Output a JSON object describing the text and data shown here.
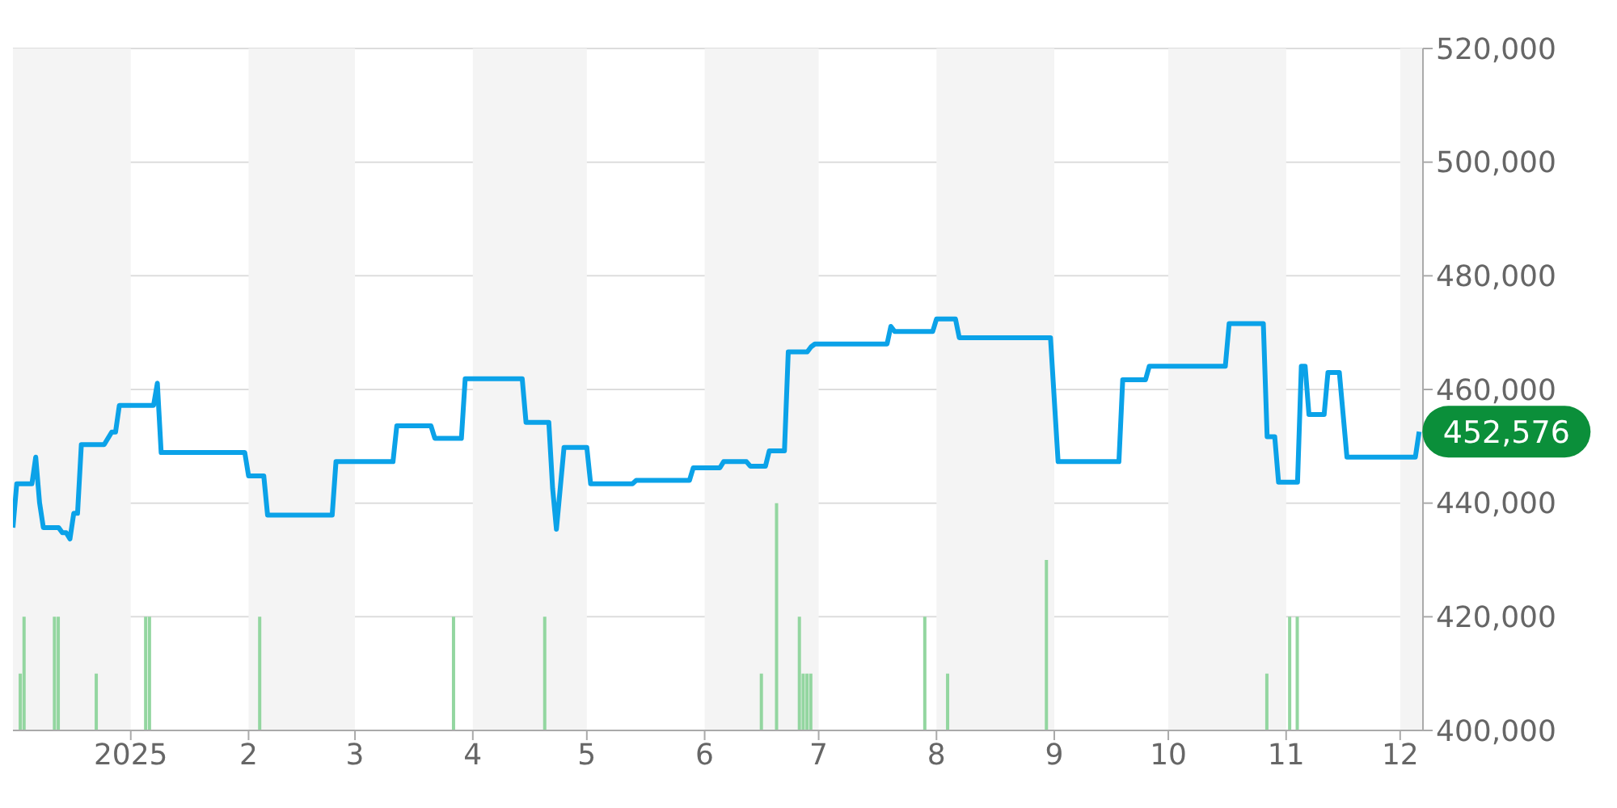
{
  "chart_data": {
    "type": "line",
    "xlim": [
      "2024-12-01",
      "2025-12-07"
    ],
    "xticks": [
      {
        "value": "2025-01-01",
        "label": "2025"
      },
      {
        "value": "2025-02-01",
        "label": "2"
      },
      {
        "value": "2025-03-01",
        "label": "3"
      },
      {
        "value": "2025-04-01",
        "label": "4"
      },
      {
        "value": "2025-05-01",
        "label": "5"
      },
      {
        "value": "2025-06-01",
        "label": "6"
      },
      {
        "value": "2025-07-01",
        "label": "7"
      },
      {
        "value": "2025-08-01",
        "label": "8"
      },
      {
        "value": "2025-09-01",
        "label": "9"
      },
      {
        "value": "2025-10-01",
        "label": "10"
      },
      {
        "value": "2025-11-01",
        "label": "11"
      },
      {
        "value": "2025-12-01",
        "label": "12"
      }
    ],
    "ylim": [
      400000,
      520000
    ],
    "yticks": [
      {
        "value": 400000,
        "label": "400,000"
      },
      {
        "value": 420000,
        "label": "420,000"
      },
      {
        "value": 440000,
        "label": "440,000"
      },
      {
        "value": 460000,
        "label": "460,000"
      },
      {
        "value": 480000,
        "label": "480,000"
      },
      {
        "value": 500000,
        "label": "500,000"
      },
      {
        "value": 520000,
        "label": "520,000"
      }
    ],
    "grid": "y",
    "bands": [
      {
        "axis": "x",
        "from": "2024-12-01",
        "to": "2025-01-01",
        "color": "#f4f4f4"
      },
      {
        "axis": "x",
        "from": "2025-02-01",
        "to": "2025-03-01",
        "color": "#f4f4f4"
      },
      {
        "axis": "x",
        "from": "2025-04-01",
        "to": "2025-05-01",
        "color": "#f4f4f4"
      },
      {
        "axis": "x",
        "from": "2025-06-01",
        "to": "2025-07-01",
        "color": "#f4f4f4"
      },
      {
        "axis": "x",
        "from": "2025-08-01",
        "to": "2025-09-01",
        "color": "#f4f4f4"
      },
      {
        "axis": "x",
        "from": "2025-10-01",
        "to": "2025-11-01",
        "color": "#f4f4f4"
      },
      {
        "axis": "x",
        "from": "2025-12-01",
        "to": "2025-12-07",
        "color": "#f4f4f4"
      }
    ],
    "series": [
      {
        "type": "bar",
        "color": "#93d6a0",
        "x": [
          "2024-12-03",
          "2024-12-04",
          "2024-12-12",
          "2024-12-13",
          "2024-12-23",
          "2025-01-05",
          "2025-01-06",
          "2025-02-04",
          "2025-03-27",
          "2025-04-20",
          "2025-06-16",
          "2025-06-20",
          "2025-06-26",
          "2025-06-27",
          "2025-06-28",
          "2025-06-29",
          "2025-07-29",
          "2025-08-04",
          "2025-08-30",
          "2025-10-27",
          "2025-11-02",
          "2025-11-04"
        ],
        "values": [
          410000,
          420000,
          420000,
          420000,
          410000,
          420000,
          420000,
          420000,
          420000,
          420000,
          410000,
          440000,
          420000,
          410000,
          410000,
          410000,
          420000,
          410000,
          430000,
          410000,
          420000,
          420000
        ]
      },
      {
        "color": "#0ba2e8",
        "x": [
          "2024-12-01",
          "2024-12-02",
          "2024-12-06",
          "2024-12-07",
          "2024-12-08",
          "2024-12-09",
          "2024-12-13",
          "2024-12-14",
          "2024-12-15",
          "2024-12-16",
          "2024-12-17",
          "2024-12-18",
          "2024-12-19",
          "2024-12-25",
          "2024-12-27",
          "2024-12-28",
          "2024-12-29",
          "2025-01-07",
          "2025-01-08",
          "2025-01-09",
          "2025-01-31",
          "2025-02-01",
          "2025-02-05",
          "2025-02-06",
          "2025-02-23",
          "2025-02-24",
          "2025-03-11",
          "2025-03-12",
          "2025-03-21",
          "2025-03-22",
          "2025-03-29",
          "2025-03-30",
          "2025-04-14",
          "2025-04-15",
          "2025-04-21",
          "2025-04-22",
          "2025-04-23",
          "2025-04-25",
          "2025-05-01",
          "2025-05-02",
          "2025-05-13",
          "2025-05-14",
          "2025-05-28",
          "2025-05-29",
          "2025-06-05",
          "2025-06-06",
          "2025-06-12",
          "2025-06-13",
          "2025-06-17",
          "2025-06-18",
          "2025-06-22",
          "2025-06-23",
          "2025-06-28",
          "2025-06-29",
          "2025-06-30",
          "2025-07-19",
          "2025-07-20",
          "2025-07-21",
          "2025-07-31",
          "2025-08-01",
          "2025-08-06",
          "2025-08-07",
          "2025-08-31",
          "2025-09-02",
          "2025-09-18",
          "2025-09-19",
          "2025-09-25",
          "2025-09-26",
          "2025-10-16",
          "2025-10-17",
          "2025-10-26",
          "2025-10-27",
          "2025-10-29",
          "2025-10-30",
          "2025-11-04",
          "2025-11-05",
          "2025-11-06",
          "2025-11-07",
          "2025-11-11",
          "2025-11-12",
          "2025-11-15",
          "2025-11-17",
          "2025-12-05",
          "2025-12-06"
        ],
        "values": [
          435700,
          443400,
          443400,
          448100,
          440100,
          435700,
          435700,
          434800,
          434800,
          433700,
          438200,
          438200,
          450300,
          450300,
          452500,
          452500,
          457200,
          457200,
          461100,
          448900,
          448900,
          444800,
          444800,
          437900,
          437900,
          447300,
          447300,
          453600,
          453600,
          451400,
          451400,
          461900,
          461900,
          454200,
          454200,
          442600,
          435400,
          449800,
          449800,
          443400,
          443400,
          444000,
          444000,
          446200,
          446200,
          447300,
          447300,
          446500,
          446500,
          449200,
          449200,
          466600,
          466600,
          467500,
          468000,
          468000,
          471100,
          470200,
          470200,
          472400,
          472400,
          469100,
          469100,
          447300,
          447300,
          461700,
          461700,
          464100,
          464100,
          471600,
          471600,
          451700,
          451700,
          443700,
          443700,
          464100,
          464100,
          455600,
          455600,
          463000,
          463000,
          448100,
          448100,
          452576
        ]
      }
    ],
    "annotations": [
      {
        "text": "452,576",
        "x": "2025-12-06",
        "y": 452576
      }
    ]
  }
}
